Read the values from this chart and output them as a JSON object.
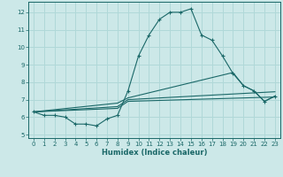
{
  "title": "",
  "xlabel": "Humidex (Indice chaleur)",
  "ylabel": "",
  "xlim": [
    -0.5,
    23.5
  ],
  "ylim": [
    4.8,
    12.6
  ],
  "xticks": [
    0,
    1,
    2,
    3,
    4,
    5,
    6,
    7,
    8,
    9,
    10,
    11,
    12,
    13,
    14,
    15,
    16,
    17,
    18,
    19,
    20,
    21,
    22,
    23
  ],
  "yticks": [
    5,
    6,
    7,
    8,
    9,
    10,
    11,
    12
  ],
  "bg_color": "#cce8e8",
  "grid_color": "#b0d8d8",
  "line_color": "#1a6868",
  "line1": {
    "x": [
      0,
      1,
      2,
      3,
      4,
      5,
      6,
      7,
      8,
      9,
      10,
      11,
      12,
      13,
      14,
      15,
      16,
      17,
      18,
      19,
      20,
      21,
      22,
      23
    ],
    "y": [
      6.3,
      6.1,
      6.1,
      6.0,
      5.6,
      5.6,
      5.5,
      5.9,
      6.1,
      7.5,
      9.5,
      10.7,
      11.6,
      12.0,
      12.0,
      12.2,
      10.7,
      10.4,
      9.5,
      8.5,
      7.8,
      7.5,
      6.9,
      7.2
    ]
  },
  "line2_x": [
    0,
    8,
    9,
    23
  ],
  "line2_y": [
    6.3,
    6.5,
    6.9,
    7.15
  ],
  "line3_x": [
    0,
    8,
    9,
    23
  ],
  "line3_y": [
    6.3,
    6.6,
    7.0,
    7.45
  ],
  "line4_x": [
    0,
    8,
    9,
    19,
    20,
    21,
    22,
    23
  ],
  "line4_y": [
    6.3,
    6.8,
    7.1,
    8.55,
    7.8,
    7.5,
    6.9,
    7.2
  ]
}
